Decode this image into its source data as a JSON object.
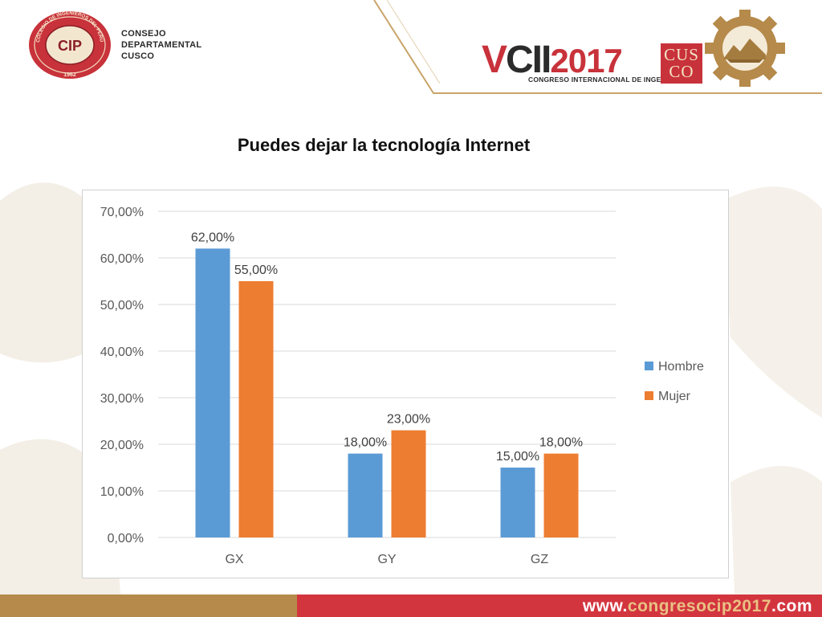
{
  "header": {
    "council_lines": [
      "CONSEJO",
      "DEPARTAMENTAL",
      "CUSCO"
    ],
    "seal_top_text": "COLEGIO DE INGENIEROS DEL PERÚ",
    "seal_year": "1962",
    "seal_monogram": "CIP",
    "event_v": "V",
    "event_cii": "CII",
    "event_year": "2017",
    "event_subtitle": "CONGRESO INTERNACIONAL DE INGENIERÍA",
    "city_badge_top": "CUS",
    "city_badge_bottom": "CO"
  },
  "title": "Puedes dejar la tecnología Internet",
  "chart_data": {
    "type": "bar",
    "title": "",
    "xlabel": "",
    "ylabel": "",
    "categories": [
      "GX",
      "GY",
      "GZ"
    ],
    "series": [
      {
        "name": "Hombre",
        "values": [
          62,
          18,
          15
        ],
        "labels": [
          "62,00%",
          "18,00%",
          "15,00%"
        ],
        "color": "#5b9bd5"
      },
      {
        "name": "Mujer",
        "values": [
          55,
          23,
          18
        ],
        "labels": [
          "55,00%",
          "23,00%",
          "18,00%"
        ],
        "color": "#ed7d31"
      }
    ],
    "ylim": [
      0,
      70
    ],
    "yticks": [
      0,
      10,
      20,
      30,
      40,
      50,
      60,
      70
    ],
    "ytick_labels": [
      "0,00%",
      "10,00%",
      "20,00%",
      "30,00%",
      "40,00%",
      "50,00%",
      "60,00%",
      "70,00%"
    ],
    "grid": true,
    "legend_position": "right"
  },
  "footer": {
    "url_start": "www.",
    "url_mid": "congresocip2017",
    "url_end": ".com"
  },
  "colors": {
    "brand_red": "#c8323a",
    "brand_gold": "#b58a4a",
    "footer_red": "#d3353f"
  }
}
